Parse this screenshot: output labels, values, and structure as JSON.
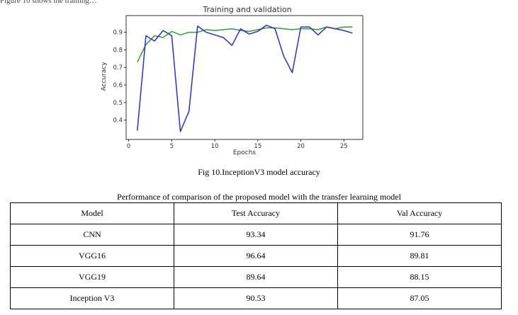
{
  "top_clip_text": "Figure 10 shows the training…",
  "chart_data": {
    "type": "line",
    "title": "Training and validation",
    "xlabel": "Epochs",
    "ylabel": "Accuracy",
    "xlim": [
      -0.3,
      27.2
    ],
    "ylim": [
      0.29,
      0.995
    ],
    "xticks": [
      0,
      5,
      10,
      15,
      20,
      25
    ],
    "yticks": [
      0.4,
      0.5,
      0.6,
      0.7,
      0.8,
      0.9
    ],
    "grid": false,
    "x": [
      1,
      2,
      3,
      4,
      5,
      6,
      7,
      8,
      9,
      10,
      11,
      12,
      13,
      14,
      15,
      16,
      17,
      18,
      19,
      20,
      21,
      22,
      23,
      24,
      25,
      26
    ],
    "series": [
      {
        "color": "#2ca02c",
        "values": [
          0.73,
          0.83,
          0.88,
          0.87,
          0.905,
          0.885,
          0.9,
          0.9,
          0.915,
          0.91,
          0.915,
          0.92,
          0.91,
          0.905,
          0.915,
          0.925,
          0.925,
          0.92,
          0.915,
          0.92,
          0.92,
          0.915,
          0.93,
          0.92,
          0.93,
          0.93
        ]
      },
      {
        "color": "#2b2bd9",
        "values": [
          0.34,
          0.88,
          0.85,
          0.91,
          0.88,
          0.335,
          0.45,
          0.935,
          0.9,
          0.885,
          0.87,
          0.825,
          0.92,
          0.89,
          0.905,
          0.94,
          0.92,
          0.765,
          0.67,
          0.93,
          0.93,
          0.885,
          0.93,
          0.92,
          0.91,
          0.895
        ]
      }
    ]
  },
  "figure_caption": "Fig 10.InceptionV3 model accuracy",
  "table_caption": "Performance of comparison of the proposed model with the transfer learning model",
  "table": {
    "headers": [
      "Model",
      "Test Accuracy",
      "Val Accuracy"
    ],
    "rows": [
      [
        "CNN",
        "93.34",
        "91.76"
      ],
      [
        "VGG16",
        "96.64",
        "89.81"
      ],
      [
        "VGG19",
        "89.64",
        "88.15"
      ],
      [
        "Inception V3",
        "90.53",
        "87.05"
      ]
    ]
  }
}
